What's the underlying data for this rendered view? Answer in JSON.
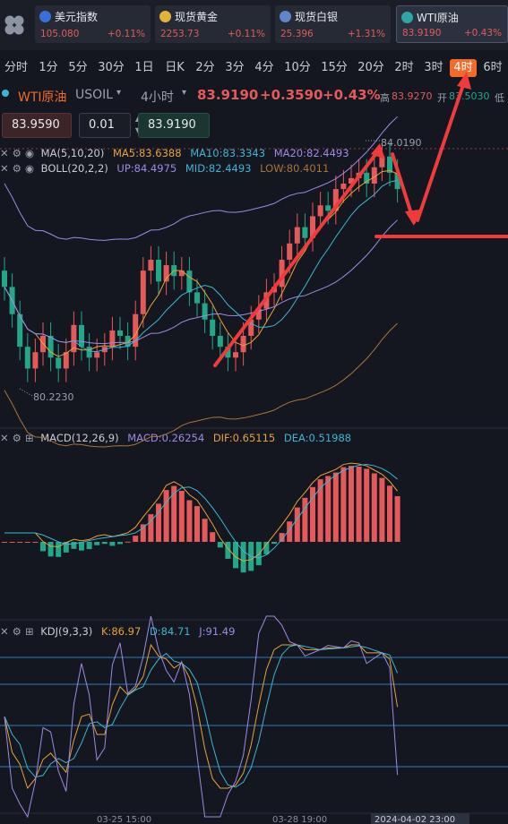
{
  "tickers": [
    {
      "name": "美元指数",
      "price": "105.080",
      "change": "+0.11%",
      "flag": "#3b6fd8"
    },
    {
      "name": "现货黄金",
      "price": "2253.73",
      "change": "+0.11%",
      "flag": "#e2b23a"
    },
    {
      "name": "现货白银",
      "price": "25.396",
      "change": "+1.31%",
      "flag": "#5e86c9"
    },
    {
      "name": "WTI原油",
      "price": "83.9190",
      "change": "+0.43%",
      "flag": "#2fa6a6"
    }
  ],
  "timeframes": [
    "分时",
    "1分",
    "5分",
    "30分",
    "1日",
    "日K",
    "2分",
    "3分",
    "4分",
    "10分",
    "15分",
    "20分",
    "2时",
    "3时",
    "4时",
    "6时"
  ],
  "active_timeframe": "4时",
  "symbol": {
    "name": "WTI原油",
    "code": "USOIL",
    "period": "4小时",
    "price": "83.9190",
    "change": "+0.3590",
    "change_pct": "+0.43%",
    "high_label": "高",
    "high": "83.9270",
    "open_label": "开",
    "open": "83.5030",
    "low_label": "低"
  },
  "order": {
    "sell_price": "83.9590",
    "lot": "0.01",
    "buy_price": "83.9190"
  },
  "indicators": {
    "ma": {
      "label": "MA(5,10,20)",
      "ma5": "MA5:83.6388",
      "ma10": "MA10:83.3343",
      "ma20": "MA20:82.4493"
    },
    "boll": {
      "label": "BOLL(20,2,2)",
      "up": "UP:84.4975",
      "mid": "MID:82.4493",
      "low": "LOW:80.4011"
    },
    "macd": {
      "label": "MACD(12,26,9)",
      "macd": "MACD:0.26254",
      "dif": "DIF:0.65115",
      "dea": "DEA:0.51988"
    },
    "kdj": {
      "label": "KDJ(9,3,3)",
      "k": "K:86.97",
      "d": "D:84.71",
      "j": "J:91.49"
    }
  },
  "annotations": {
    "high_marker": "84.0190",
    "low_marker": "80.2230"
  },
  "dates": [
    "03-25 15:00",
    "03-28 19:00",
    "2024-04-02 23:00"
  ],
  "colors": {
    "up": "#e45a5a",
    "down": "#22a889",
    "accent": "#f16b2c",
    "ma5": "#e6a23c",
    "ma10": "#3cb6d4",
    "ma20": "#9d8ae6",
    "boll_low": "#a8743c",
    "arrow": "#ef3b3b"
  }
}
